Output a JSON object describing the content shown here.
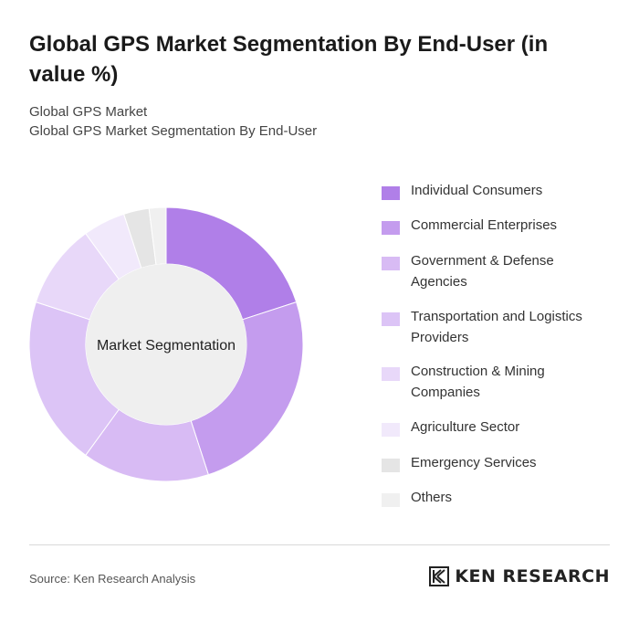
{
  "title": "Global GPS Market Segmentation By End-User (in value %)",
  "subtitle_1": "Global GPS Market",
  "subtitle_2": "Global GPS Market Segmentation By End-User",
  "chart_data": {
    "type": "pie",
    "variant": "donut",
    "center_label": "Market Segmentation",
    "legend_position": "right",
    "categories": [
      "Individual Consumers",
      "Commercial Enterprises",
      "Government & Defense Agencies",
      "Transportation and Logistics Providers",
      "Construction & Mining Companies",
      "Agriculture Sector",
      "Emergency Services",
      "Others"
    ],
    "values": [
      20,
      25,
      15,
      20,
      10,
      5,
      3,
      2
    ],
    "colors": [
      "#b07fe8",
      "#c49cee",
      "#d8bbf4",
      "#dcc4f6",
      "#e8d8f9",
      "#f1e9fb",
      "#e5e5e5",
      "#f0f0f0"
    ]
  },
  "legend_lines": [
    [
      "Individual Consumers"
    ],
    [
      "Commercial Enterprises"
    ],
    [
      "Government & Defense",
      "Agencies"
    ],
    [
      "Transportation and Logistics",
      "Providers"
    ],
    [
      "Construction & Mining",
      "Companies"
    ],
    [
      "Agriculture Sector"
    ],
    [
      "Emergency Services"
    ],
    [
      "Others"
    ]
  ],
  "footer": {
    "source": "Source: Ken Research Analysis",
    "logo_text": "KEN RESEARCH"
  }
}
